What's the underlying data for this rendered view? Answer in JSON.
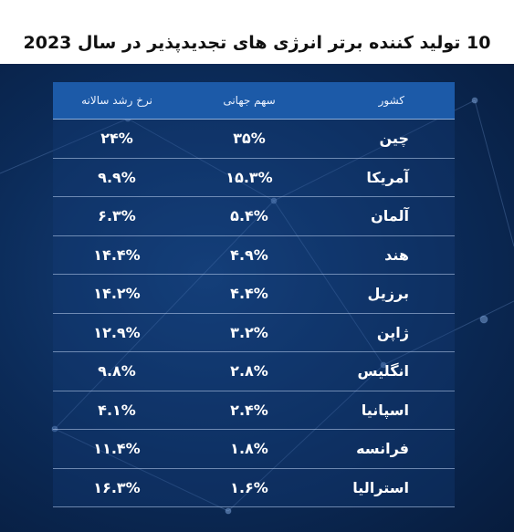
{
  "title": "10 تولید کننده برتر انرژی های تجدیدپذیر در سال 2023",
  "table": {
    "header": [
      "کشور",
      "سهم جهانی",
      "نرخ رشد سالانه"
    ],
    "rows": [
      [
        "چین",
        "۳۵%",
        "۲۴%"
      ],
      [
        "آمریکا",
        "۱۵.۳%",
        "۹.۹%"
      ],
      [
        "آلمان",
        "۵.۴%",
        "۶.۳%"
      ],
      [
        "هند",
        "۴.۹%",
        "۱۴.۴%"
      ],
      [
        "برزیل",
        "۴.۴%",
        "۱۴.۲%"
      ],
      [
        "ژاپن",
        "۳.۲%",
        "۱۲.۹%"
      ],
      [
        "انگلیس",
        "۲.۸%",
        "۹.۸%"
      ],
      [
        "اسپانیا",
        "۲.۴%",
        "۴.۱%"
      ],
      [
        "فرانسه",
        "۱.۸%",
        "۱۱.۴%"
      ],
      [
        "استرالیا",
        "۱.۶%",
        "۱۶.۳%"
      ]
    ]
  }
}
